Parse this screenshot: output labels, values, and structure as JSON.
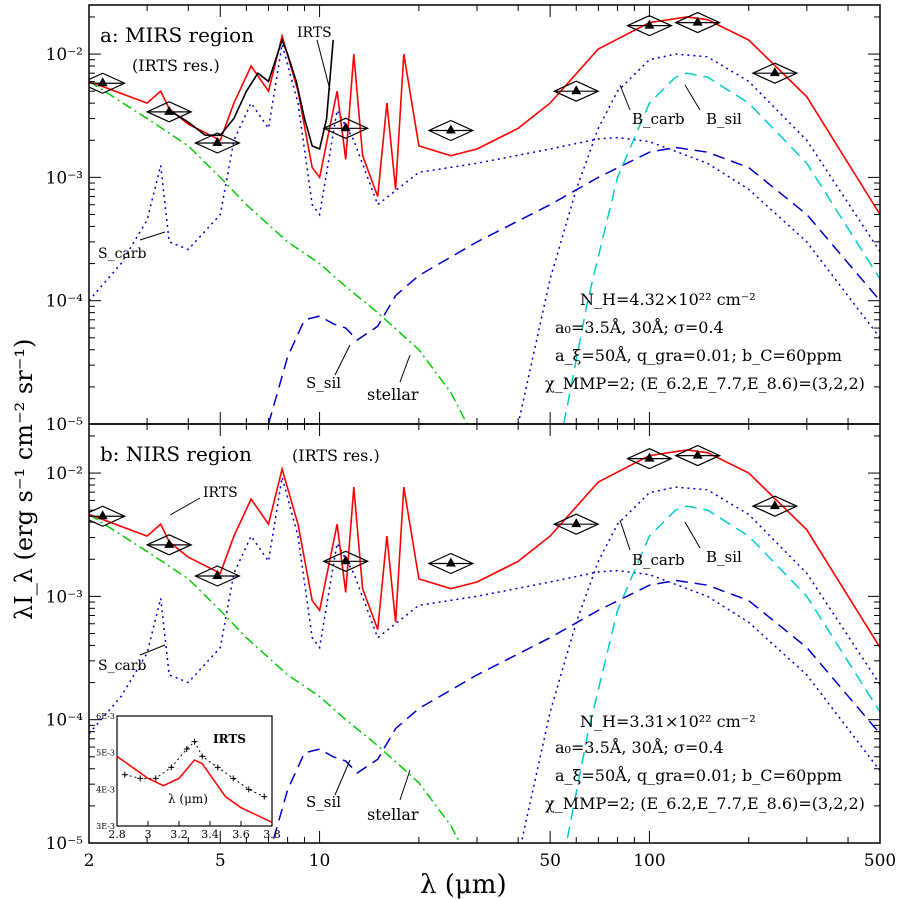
{
  "axes": {
    "xlabel": "λ (μm)",
    "ylabel": "λI_λ (erg s⁻¹ cm⁻² sr⁻¹)",
    "x_ticks": [
      "2",
      "5",
      "10",
      "50",
      "100",
      "500"
    ],
    "y_ticks": [
      "10⁻²",
      "10⁻³",
      "10⁻⁴",
      "10⁻⁵"
    ],
    "x_scale": "log",
    "y_scale": "log"
  },
  "panels": [
    {
      "id": "a",
      "title": "a: MIRS region",
      "subtitle": "(IRTS res.)",
      "params": [
        "N_H=4.32×10²² cm⁻²",
        "a₀=3.5Å, 30Å; σ=0.4",
        "a_ξ=50Å, q_gra=0.01; b_C=60ppm",
        "χ_MMP=2; (E_6.2,E_7.7,E_8.6)=(3,2,2)"
      ],
      "labels": {
        "irts": "IRTS",
        "s_carb": "S_carb",
        "s_sil": "S_sil",
        "stellar": "stellar",
        "b_carb": "B_carb",
        "b_sil": "B_sil"
      },
      "scale": 1.0
    },
    {
      "id": "b",
      "title": "b: NIRS region",
      "subtitle": "(IRTS res.)",
      "params": [
        "N_H=3.31×10²² cm⁻²",
        "a₀=3.5Å, 30Å; σ=0.4",
        "a_ξ=50Å, q_gra=0.01; b_C=60ppm",
        "χ_MMP=2; (E_6.2,E_7.7,E_8.6)=(3,2,2)"
      ],
      "labels": {
        "irts": "IRTS",
        "s_carb": "S_carb",
        "s_sil": "S_sil",
        "stellar": "stellar",
        "b_carb": "B_carb",
        "b_sil": "B_sil"
      },
      "scale": 0.77
    }
  ],
  "inset": {
    "xlabel": "λ (μm)",
    "x_ticks": [
      "2.8",
      "3",
      "3.2",
      "3.4",
      "3.6",
      "3.8"
    ],
    "y_ticks": [
      "6E-3",
      "5E-3",
      "4E-3",
      "3E-3"
    ],
    "label": "IRTS"
  },
  "chart_data": {
    "type": "line",
    "x_range": [
      2,
      500
    ],
    "y_range": [
      1e-05,
      0.025
    ],
    "series": [
      {
        "name": "S_carb",
        "color": "#0000cc",
        "style": "dotted",
        "x": [
          2,
          2.5,
          3,
          3.3,
          3.5,
          4,
          5,
          5.5,
          6.2,
          7,
          7.7,
          8.6,
          9.5,
          10,
          11.3,
          12.7,
          15,
          20,
          30,
          50,
          70,
          80,
          100,
          150,
          200,
          300,
          500
        ],
        "y": [
          0.0001,
          0.0002,
          0.00045,
          0.00125,
          0.0003,
          0.00026,
          0.0005,
          0.002,
          0.004,
          0.0025,
          0.012,
          0.004,
          0.0006,
          0.0005,
          0.0035,
          0.002,
          0.0006,
          0.0011,
          0.0013,
          0.0017,
          0.00205,
          0.0021,
          0.00195,
          0.0013,
          0.0008,
          0.0003,
          5e-05
        ]
      },
      {
        "name": "S_sil",
        "color": "#0000cc",
        "style": "dashed",
        "x": [
          7,
          8,
          9,
          10,
          11,
          12,
          13,
          15,
          17,
          20,
          30,
          50,
          70,
          100,
          120,
          150,
          200,
          300,
          500
        ],
        "y": [
          1e-05,
          3.5e-05,
          7e-05,
          7.5e-05,
          6.5e-05,
          6e-05,
          4.8e-05,
          6.2e-05,
          0.00011,
          0.00016,
          0.0003,
          0.0006,
          0.001,
          0.0016,
          0.00175,
          0.0016,
          0.0012,
          0.0005,
          0.0001
        ]
      },
      {
        "name": "stellar",
        "color": "#00cc00",
        "style": "dashdot",
        "x": [
          2,
          3,
          4,
          5,
          6,
          8,
          10,
          12,
          15,
          20,
          25,
          28
        ],
        "y": [
          0.006,
          0.003,
          0.0018,
          0.001,
          0.0006,
          0.0003,
          0.0002,
          0.00013,
          8e-05,
          4e-05,
          1.8e-05,
          1e-05
        ]
      },
      {
        "name": "B_carb",
        "color": "#0000cc",
        "style": "dotted",
        "x": [
          40,
          50,
          60,
          70,
          80,
          100,
          120,
          150,
          200,
          300,
          500
        ],
        "y": [
          1e-05,
          0.00015,
          0.0008,
          0.0025,
          0.005,
          0.009,
          0.01,
          0.0095,
          0.006,
          0.002,
          0.00025
        ]
      },
      {
        "name": "B_sil",
        "color": "#00cccc",
        "style": "dashed",
        "x": [
          55,
          65,
          80,
          100,
          120,
          130,
          150,
          200,
          300,
          500
        ],
        "y": [
          1e-05,
          0.0001,
          0.001,
          0.004,
          0.0065,
          0.007,
          0.0065,
          0.004,
          0.0013,
          0.00015
        ]
      },
      {
        "name": "Total",
        "color": "#ff0000",
        "style": "solid",
        "x": [
          2,
          3,
          3.3,
          3.5,
          4,
          5,
          5.5,
          6.2,
          7,
          7.7,
          8.6,
          9.5,
          10,
          11.3,
          12,
          12.7,
          13.5,
          15,
          16,
          17,
          18,
          20,
          25,
          30,
          40,
          50,
          70,
          100,
          130,
          150,
          200,
          300,
          500
        ],
        "y": [
          0.006,
          0.004,
          0.005,
          0.0036,
          0.0027,
          0.002,
          0.004,
          0.008,
          0.005,
          0.014,
          0.005,
          0.0012,
          0.001,
          0.005,
          0.0014,
          0.01,
          0.0015,
          0.0007,
          0.004,
          0.0008,
          0.01,
          0.0018,
          0.0015,
          0.0017,
          0.0025,
          0.004,
          0.011,
          0.018,
          0.02,
          0.019,
          0.013,
          0.0045,
          0.0005
        ]
      },
      {
        "name": "IRTS",
        "color": "#000000",
        "style": "solid",
        "x": [
          3.5,
          4,
          4.5,
          5,
          5.5,
          6,
          6.5,
          7,
          7.7,
          8,
          8.5,
          9,
          9.5,
          10,
          10.5,
          11
        ],
        "y": [
          0.0035,
          0.0028,
          0.0022,
          0.0022,
          0.003,
          0.005,
          0.007,
          0.006,
          0.013,
          0.01,
          0.006,
          0.003,
          0.0018,
          0.0017,
          0.003,
          0.013
        ]
      },
      {
        "name": "Observed",
        "color": "#000000",
        "style": "points",
        "x": [
          2.2,
          3.5,
          4.9,
          12,
          25,
          60,
          100,
          140,
          240
        ],
        "y": [
          0.0058,
          0.0034,
          0.0019,
          0.0025,
          0.0024,
          0.005,
          0.017,
          0.018,
          0.007
        ]
      }
    ]
  }
}
